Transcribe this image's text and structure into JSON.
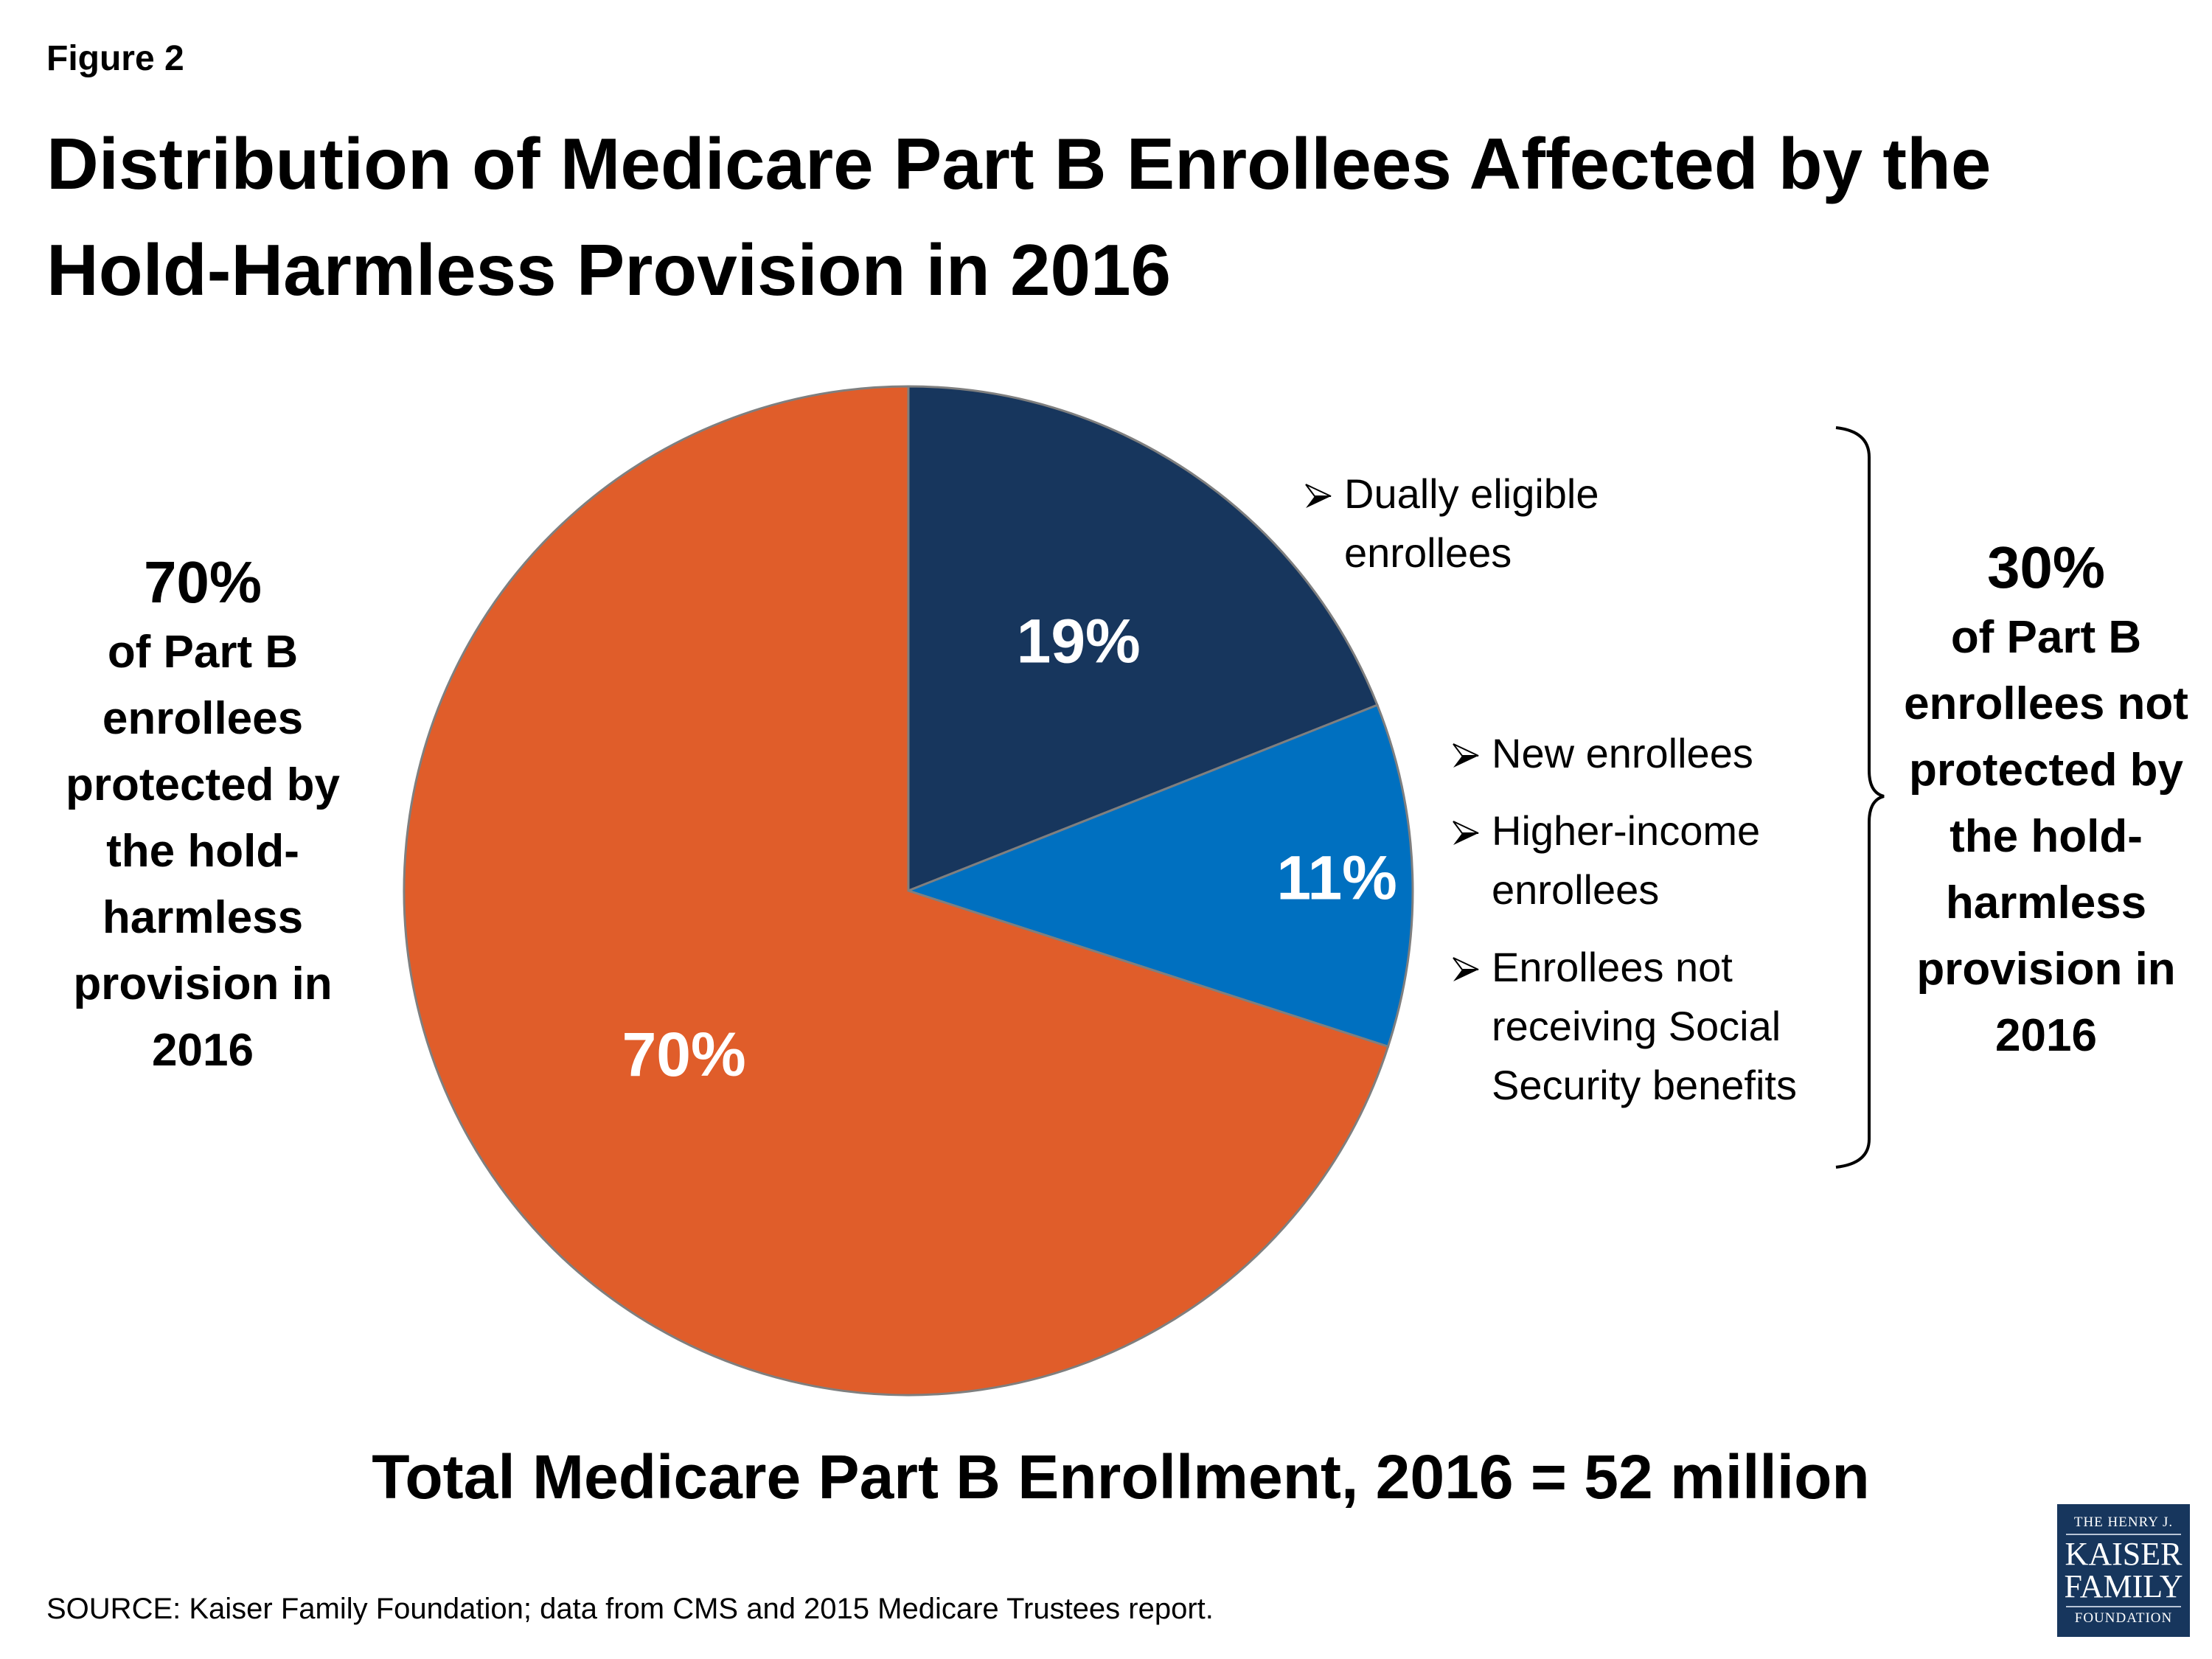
{
  "figure_label": "Figure 2",
  "title_lines": [
    "Distribution of Medicare Part B Enrollees Affected by the",
    "Hold-Harmless Provision in 2016"
  ],
  "chart_data": {
    "type": "pie",
    "start": "top, clockwise",
    "slices": [
      {
        "label": "19%",
        "value": 19,
        "color": "#17365d"
      },
      {
        "label": "11%",
        "value": 11,
        "color": "#0070c0"
      },
      {
        "label": "70%",
        "value": 70,
        "color": "#e05d2a"
      }
    ]
  },
  "left_note": {
    "pct": "70%",
    "lines": [
      "of Part B",
      "enrollees",
      "protected by",
      "the hold-",
      "harmless",
      "provision in",
      "2016"
    ]
  },
  "right_note": {
    "pct": "30%",
    "lines": [
      "of Part B",
      "enrollees not",
      "protected by",
      "the hold-",
      "harmless",
      "provision in",
      "2016"
    ]
  },
  "bullets_top": [
    [
      "Dually eligible",
      "enrollees"
    ]
  ],
  "bullets_bottom": [
    [
      "New enrollees"
    ],
    [
      "Higher-income",
      "enrollees"
    ],
    [
      "Enrollees not",
      "receiving Social",
      "Security benefits"
    ]
  ],
  "total": "Total Medicare Part B Enrollment, 2016 = 52 million",
  "source": "SOURCE: Kaiser Family Foundation; data from CMS and 2015 Medicare Trustees report.",
  "logo": {
    "l1": "THE HENRY J.",
    "l2": "KAISER",
    "l3": "FAMILY",
    "l4": "FOUNDATION"
  }
}
